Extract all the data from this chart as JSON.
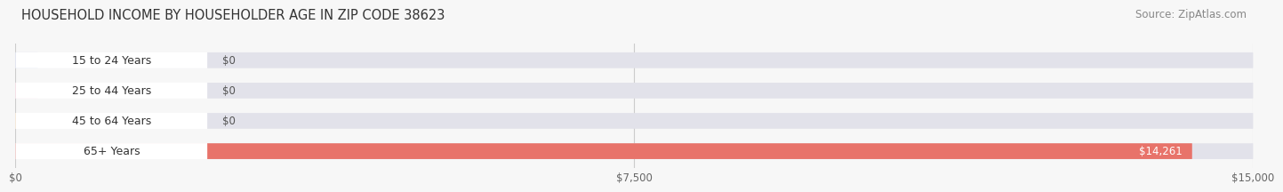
{
  "title": "HOUSEHOLD INCOME BY HOUSEHOLDER AGE IN ZIP CODE 38623",
  "source": "Source: ZipAtlas.com",
  "categories": [
    "15 to 24 Years",
    "25 to 44 Years",
    "45 to 64 Years",
    "65+ Years"
  ],
  "values": [
    0,
    0,
    0,
    14261
  ],
  "max_value": 15000,
  "bar_colors": [
    "#b0bce0",
    "#f2a8c0",
    "#f5ca90",
    "#e8736a"
  ],
  "background_color": "#f7f7f7",
  "bar_bg_color": "#e2e2ea",
  "value_labels": [
    "$0",
    "$0",
    "$0",
    "$14,261"
  ],
  "x_ticks": [
    0,
    7500,
    15000
  ],
  "x_tick_labels": [
    "$0",
    "$7,500",
    "$15,000"
  ],
  "title_fontsize": 10.5,
  "source_fontsize": 8.5,
  "label_fontsize": 9,
  "value_fontsize": 8.5
}
